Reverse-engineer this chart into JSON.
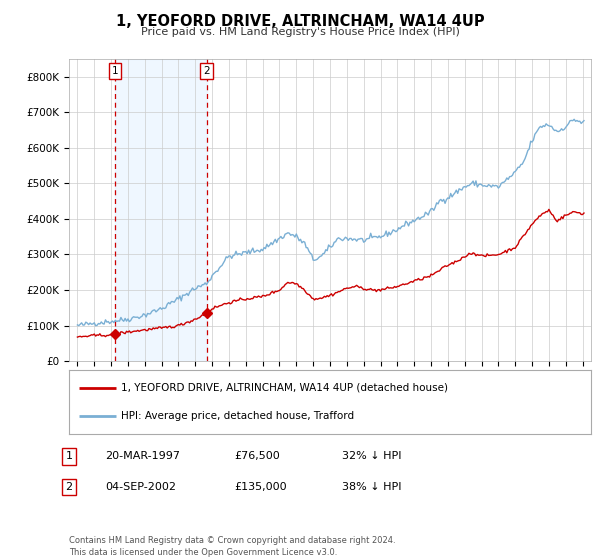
{
  "title": "1, YEOFORD DRIVE, ALTRINCHAM, WA14 4UP",
  "subtitle": "Price paid vs. HM Land Registry's House Price Index (HPI)",
  "legend_label_red": "1, YEOFORD DRIVE, ALTRINCHAM, WA14 4UP (detached house)",
  "legend_label_blue": "HPI: Average price, detached house, Trafford",
  "footer_line1": "Contains HM Land Registry data © Crown copyright and database right 2024.",
  "footer_line2": "This data is licensed under the Open Government Licence v3.0.",
  "transaction1_label": "1",
  "transaction1_date": "20-MAR-1997",
  "transaction1_price": "£76,500",
  "transaction1_hpi": "32% ↓ HPI",
  "transaction2_label": "2",
  "transaction2_date": "04-SEP-2002",
  "transaction2_price": "£135,000",
  "transaction2_hpi": "38% ↓ HPI",
  "transaction1_year": 1997.22,
  "transaction1_value": 76500,
  "transaction2_year": 2002.67,
  "transaction2_value": 135000,
  "xlim": [
    1994.5,
    2025.5
  ],
  "ylim": [
    0,
    850000
  ],
  "background_color": "#ffffff",
  "plot_bg_color": "#ffffff",
  "grid_color": "#cccccc",
  "red_color": "#cc0000",
  "blue_color": "#7aafd4",
  "shade_color": "#ddeeff",
  "shade_alpha": 0.45,
  "yticks": [
    0,
    100000,
    200000,
    300000,
    400000,
    500000,
    600000,
    700000,
    800000
  ],
  "ytick_labels": [
    "£0",
    "£100K",
    "£200K",
    "£300K",
    "£400K",
    "£500K",
    "£600K",
    "£700K",
    "£800K"
  ]
}
